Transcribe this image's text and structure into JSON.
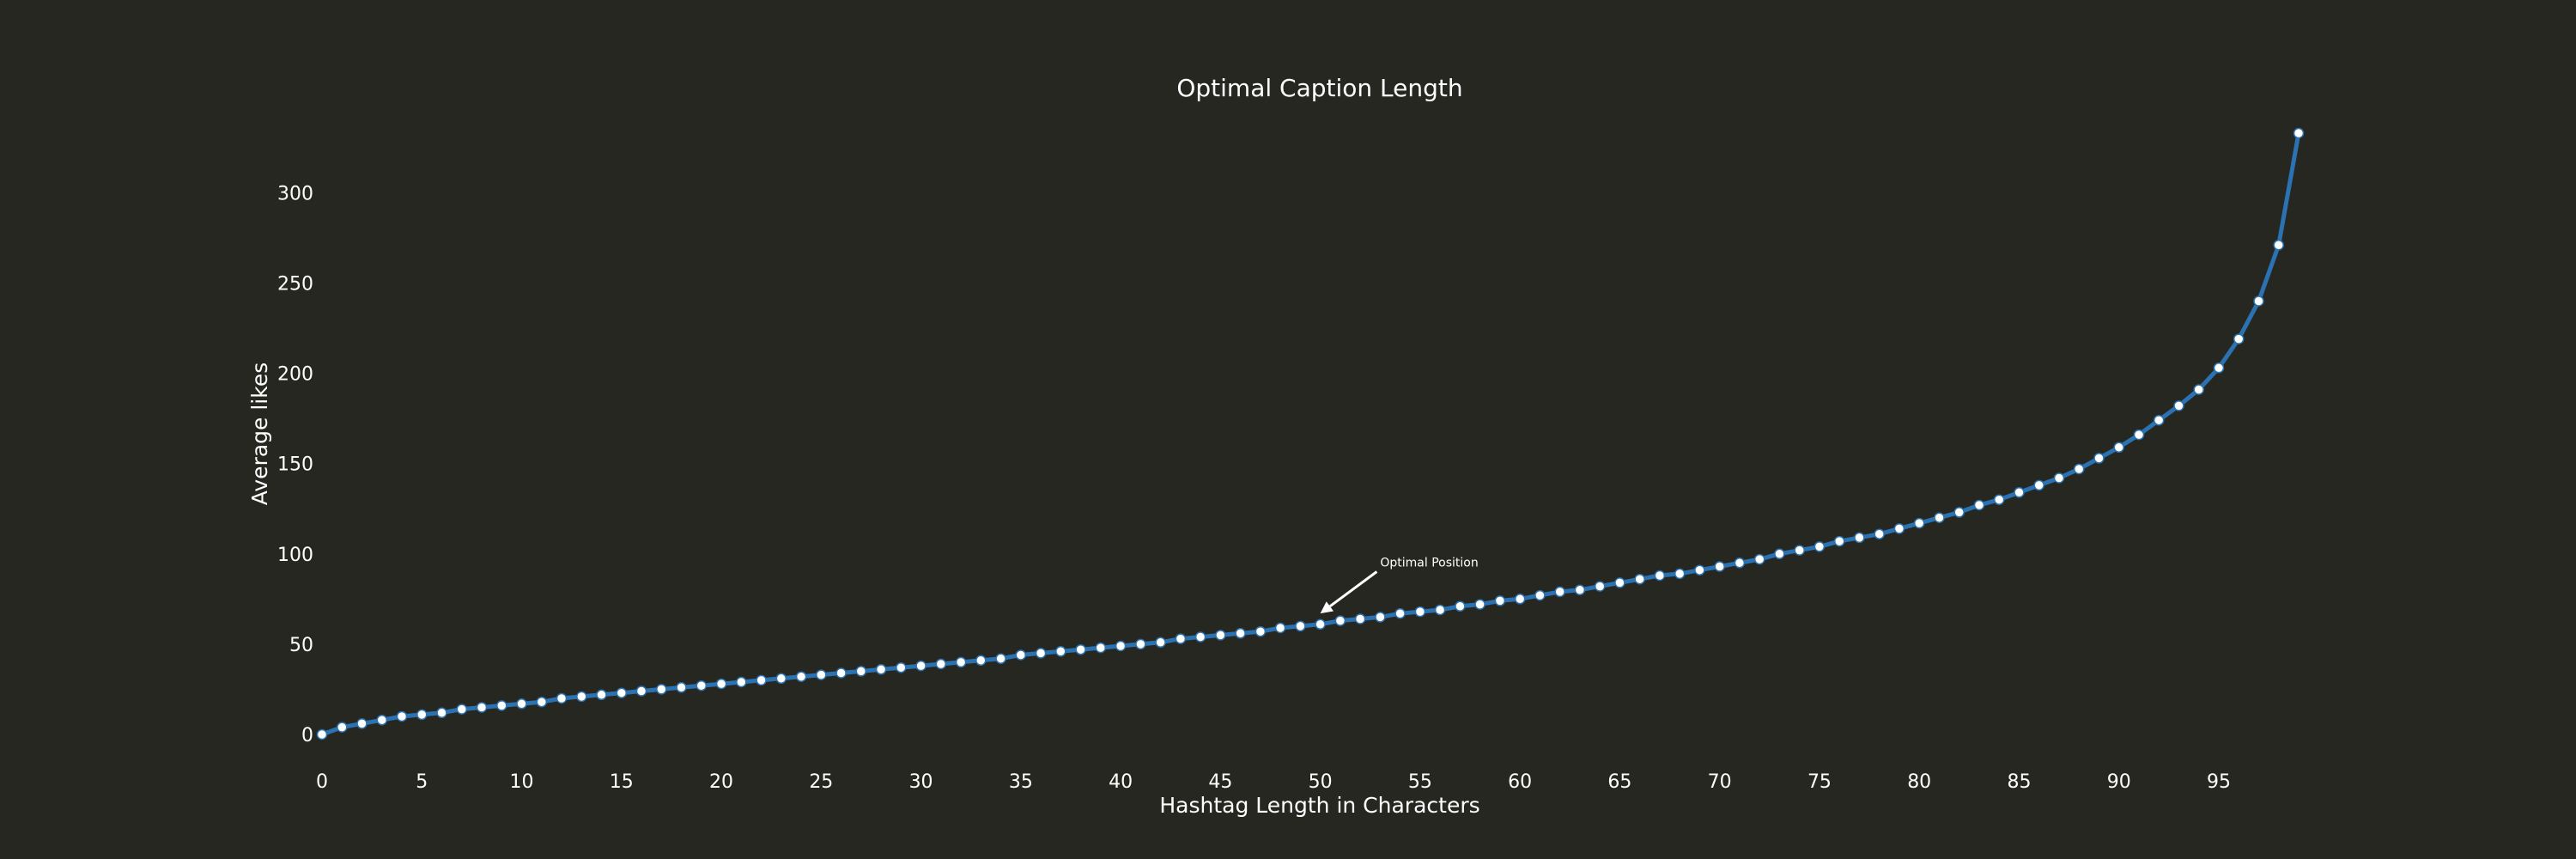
{
  "colors": {
    "background": "#272722",
    "line": "#2a72b1",
    "marker_fill": "#ffffff",
    "marker_edge": "#2a72b1",
    "text": "#ffffff"
  },
  "chart_data": {
    "type": "line",
    "title": "Optimal Caption Length",
    "xlabel": "Hashtag Length in Characters",
    "ylabel": "Average likes",
    "xlim": [
      0,
      99
    ],
    "ylim": [
      0,
      333
    ],
    "grid": false,
    "legend": "none",
    "x_ticks": [
      "0",
      "5",
      "10",
      "15",
      "20",
      "25",
      "30",
      "35",
      "40",
      "45",
      "50",
      "55",
      "60",
      "65",
      "70",
      "75",
      "80",
      "85",
      "90",
      "95"
    ],
    "y_ticks": [
      "0",
      "50",
      "100",
      "150",
      "200",
      "250",
      "300"
    ],
    "series": [
      {
        "x": [
          0,
          1,
          2,
          3,
          4,
          5,
          6,
          7,
          8,
          9,
          10,
          11,
          12,
          13,
          14,
          15,
          16,
          17,
          18,
          19,
          20,
          21,
          22,
          23,
          24,
          25,
          26,
          27,
          28,
          29,
          30,
          31,
          32,
          33,
          34,
          35,
          36,
          37,
          38,
          39,
          40,
          41,
          42,
          43,
          44,
          45,
          46,
          47,
          48,
          49,
          50,
          51,
          52,
          53,
          54,
          55,
          56,
          57,
          58,
          59,
          60,
          61,
          62,
          63,
          64,
          65,
          66,
          67,
          68,
          69,
          70,
          71,
          72,
          73,
          74,
          75,
          76,
          77,
          78,
          79,
          80,
          81,
          82,
          83,
          84,
          85,
          86,
          87,
          88,
          89,
          90,
          91,
          92,
          93,
          94,
          95,
          96,
          97,
          98,
          99
        ],
        "values": [
          0,
          4,
          6,
          8,
          10,
          11,
          12,
          14,
          15,
          16,
          17,
          18,
          20,
          21,
          22,
          23,
          24,
          25,
          26,
          27,
          28,
          29,
          30,
          31,
          32,
          33,
          34,
          35,
          36,
          37,
          38,
          39,
          40,
          41,
          42,
          44,
          45,
          46,
          47,
          48,
          49,
          50,
          51,
          53,
          54,
          55,
          56,
          57,
          59,
          60,
          61,
          63,
          64,
          65,
          67,
          68,
          69,
          71,
          72,
          74,
          75,
          77,
          79,
          80,
          82,
          84,
          86,
          88,
          89,
          91,
          93,
          95,
          97,
          100,
          102,
          104,
          107,
          109,
          111,
          114,
          117,
          120,
          123,
          127,
          130,
          134,
          138,
          142,
          147,
          153,
          159,
          166,
          174,
          182,
          191,
          203,
          219,
          240,
          271,
          333
        ]
      }
    ],
    "annotations": [
      {
        "text": "Optimal Position",
        "x": 50,
        "y": 67,
        "text_x": 53,
        "text_y": 93
      }
    ]
  }
}
